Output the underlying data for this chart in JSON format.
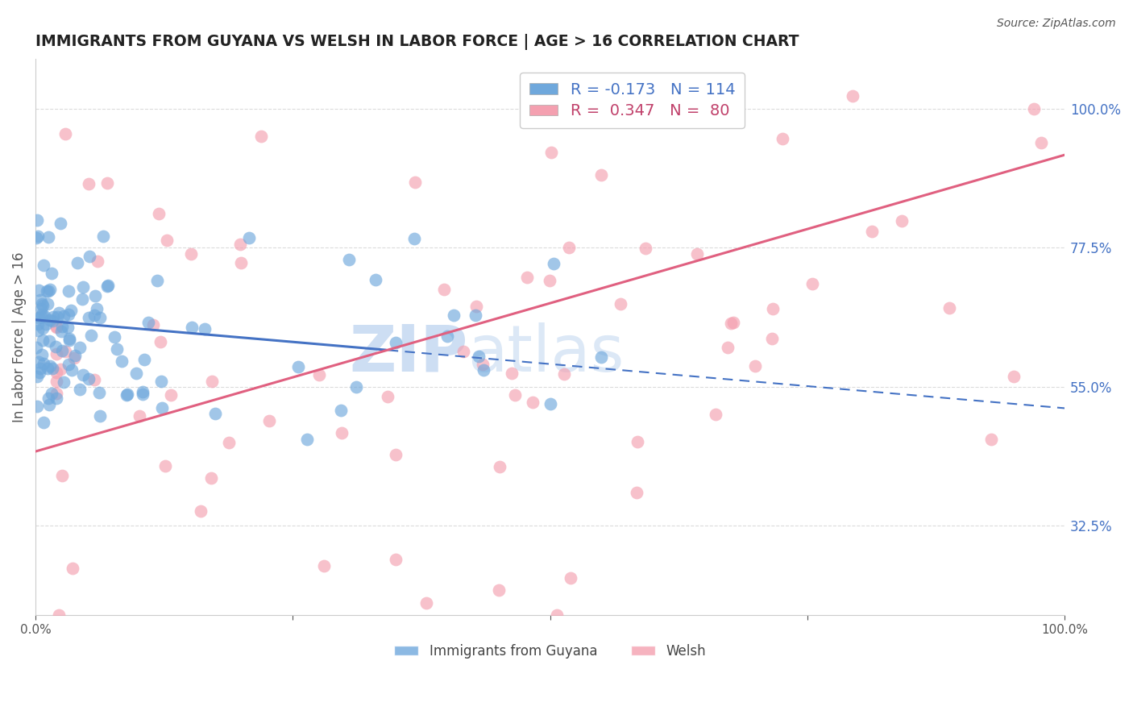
{
  "title": "IMMIGRANTS FROM GUYANA VS WELSH IN LABOR FORCE | AGE > 16 CORRELATION CHART",
  "source": "Source: ZipAtlas.com",
  "ylabel": "In Labor Force | Age > 16",
  "xlim": [
    0.0,
    1.0
  ],
  "ylim": [
    0.18,
    1.08
  ],
  "yticks": [
    0.325,
    0.55,
    0.775,
    1.0
  ],
  "ytick_labels": [
    "32.5%",
    "55.0%",
    "77.5%",
    "100.0%"
  ],
  "xticks": [
    0.0,
    0.25,
    0.5,
    0.75,
    1.0
  ],
  "xtick_labels": [
    "0.0%",
    "",
    "",
    "",
    "100.0%"
  ],
  "blue_color": "#6fa8dc",
  "pink_color": "#f4a0b0",
  "blue_line_color": "#4472c4",
  "pink_line_color": "#e06080",
  "grid_color": "#cccccc",
  "watermark_color": "#c5d9f1",
  "R_blue": -0.173,
  "N_blue": 114,
  "R_pink": 0.347,
  "N_pink": 80,
  "blue_line_start_y": 0.658,
  "blue_line_end_y": 0.515,
  "pink_line_start_y": 0.445,
  "pink_line_end_y": 0.925
}
